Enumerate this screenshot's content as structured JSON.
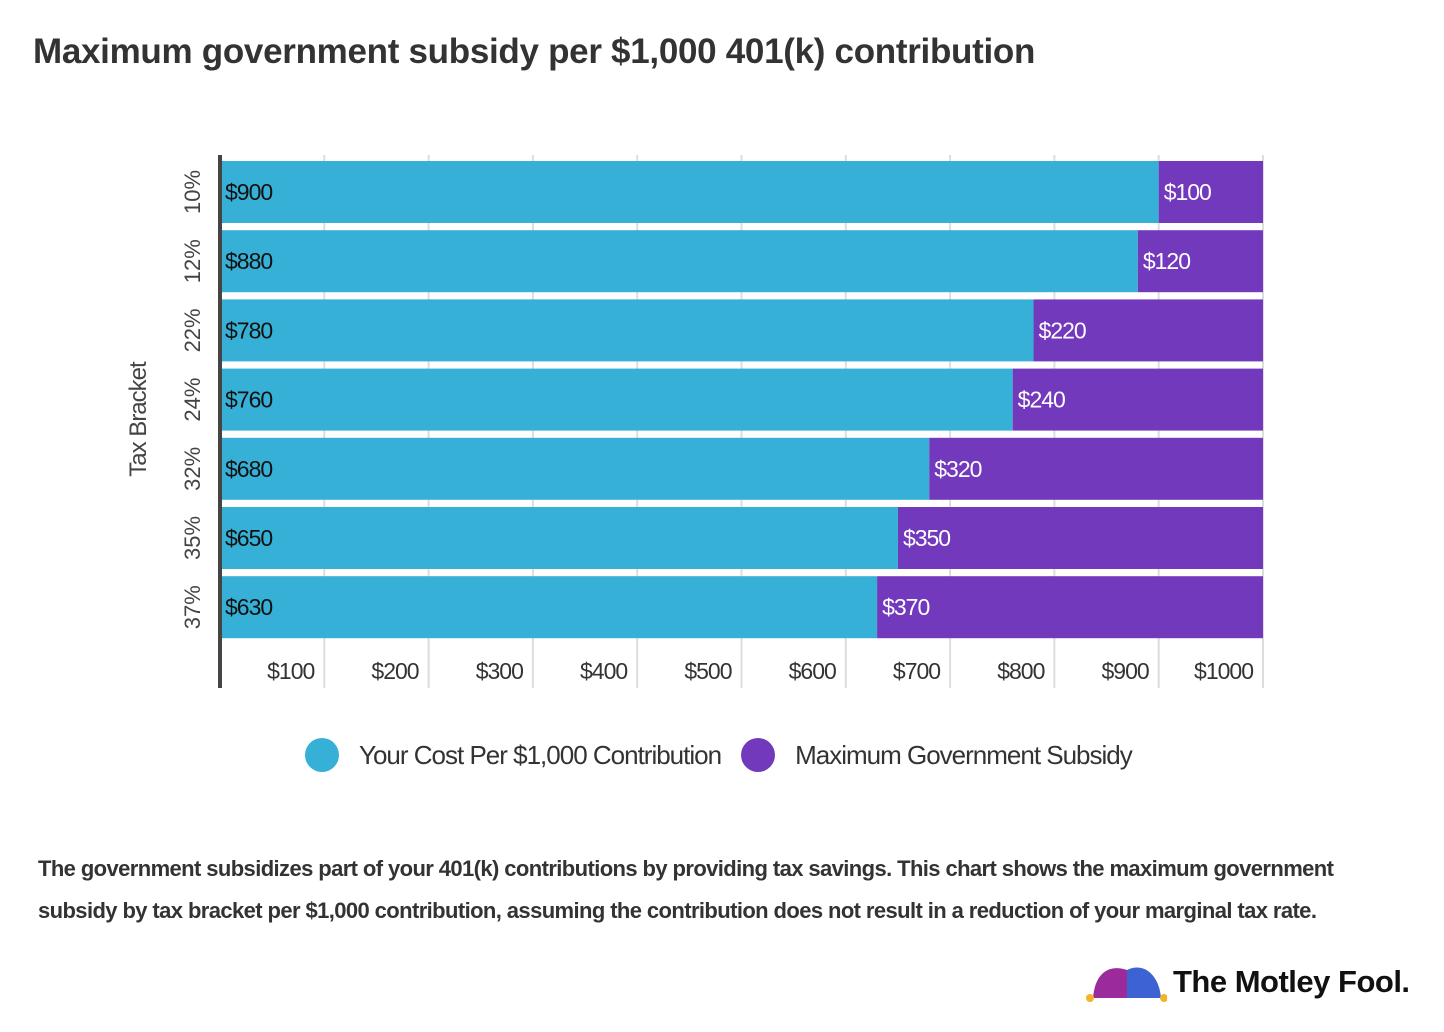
{
  "chart_data": {
    "type": "bar",
    "orientation": "horizontal",
    "stacked": true,
    "title": "Maximum government subsidy per $1,000 401(k) contribution",
    "ylabel": "Tax Bracket",
    "xlabel": "",
    "categories": [
      "10%",
      "12%",
      "22%",
      "24%",
      "32%",
      "35%",
      "37%"
    ],
    "series": [
      {
        "name": "Your Cost Per $1,000 Contribution",
        "color": "#36b0d6",
        "values": [
          900,
          880,
          780,
          760,
          680,
          650,
          630
        ]
      },
      {
        "name": "Maximum Government Subsidy",
        "color": "#7339bd",
        "values": [
          100,
          120,
          220,
          240,
          320,
          350,
          370
        ]
      }
    ],
    "xlim": [
      0,
      1000
    ],
    "xticks": [
      100,
      200,
      300,
      400,
      500,
      600,
      700,
      800,
      900,
      1000
    ],
    "xtick_labels": [
      "$100",
      "$200",
      "$300",
      "$400",
      "$500",
      "$600",
      "$700",
      "$800",
      "$900",
      "$1000"
    ],
    "data_label_prefix": "$",
    "grid": "vertical",
    "legend": "bottom"
  },
  "caption": "The government subsidizes part of your 401(k) contributions by providing tax savings. This chart shows the maximum government subsidy by tax bracket per $1,000 contribution, assuming the contribution does not result in a reduction of your marginal tax rate.",
  "logo": {
    "text": "The Motley Fool."
  }
}
